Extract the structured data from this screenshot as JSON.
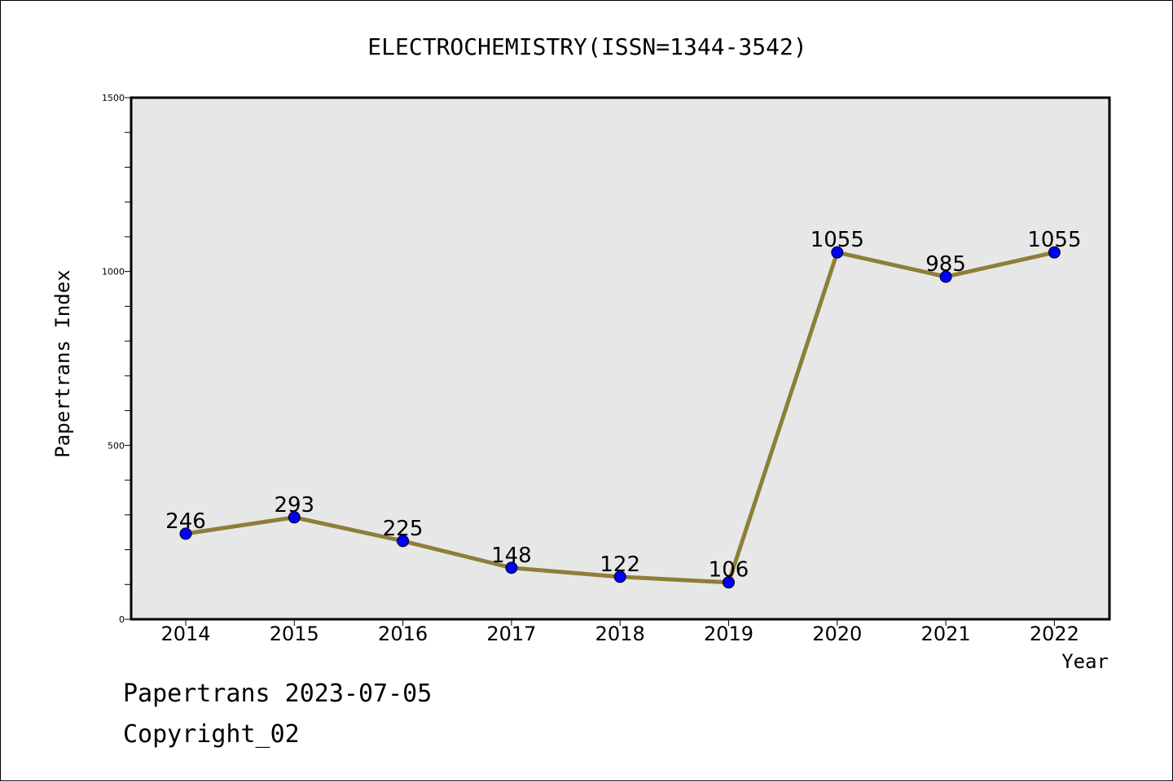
{
  "chart_data": {
    "type": "line",
    "title": "ELECTROCHEMISTRY(ISSN=1344-3542)",
    "xlabel": "Year",
    "ylabel": "Papertrans Index",
    "categories": [
      "2014",
      "2015",
      "2016",
      "2017",
      "2018",
      "2019",
      "2020",
      "2021",
      "2022"
    ],
    "series": [
      {
        "values": [
          246,
          293,
          225,
          148,
          122,
          106,
          1055,
          985,
          1055
        ]
      }
    ],
    "ylim": [
      0,
      1500
    ],
    "yticks": [
      0,
      500,
      1000,
      1500
    ],
    "data_labels": [
      "246",
      "293",
      "225",
      "148",
      "122",
      "106",
      "1055",
      "985",
      "1055"
    ],
    "grid": false,
    "colors": {
      "plot_background": "#e7e7e7",
      "line": "#8f7e3a",
      "marker": "#0000ff"
    }
  },
  "footer": {
    "line1": "Papertrans 2023-07-05",
    "line2": "Copyright_02"
  }
}
